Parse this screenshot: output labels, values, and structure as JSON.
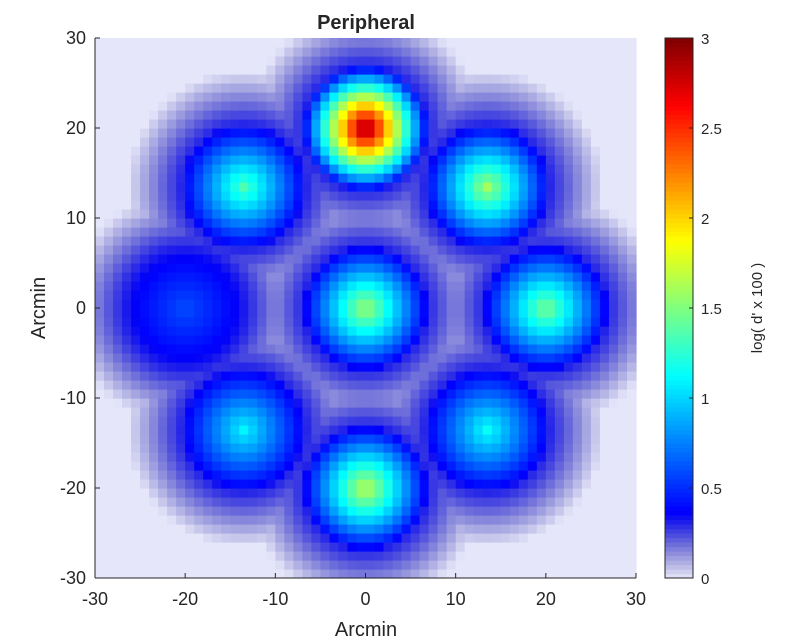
{
  "chart_data": {
    "type": "heatmap",
    "title": "Peripheral",
    "xlabel": "Arcmin",
    "ylabel": "Arcmin",
    "xlim": [
      -30,
      30
    ],
    "ylim": [
      -30,
      30
    ],
    "xticks": [
      -30,
      -20,
      -10,
      0,
      10,
      20,
      30
    ],
    "yticks": [
      -30,
      -20,
      -10,
      0,
      10,
      20,
      30
    ],
    "xtick_labels": [
      "-30",
      "-20",
      "-10",
      "0",
      "10",
      "20",
      "30"
    ],
    "ytick_labels": [
      "-30",
      "-20",
      "-10",
      "0",
      "10",
      "20",
      "30"
    ],
    "colorbar": {
      "label": "log( d' x 100 )",
      "range": [
        0,
        3
      ],
      "ticks": [
        0,
        0.5,
        1,
        1.5,
        2,
        2.5,
        3
      ],
      "tick_labels": [
        "0",
        "0.5",
        "1",
        "1.5",
        "2",
        "2.5",
        "3"
      ],
      "colormap": "jet"
    },
    "peaks": [
      {
        "x": 0,
        "y": 20,
        "value": 3.0
      },
      {
        "x": 13.5,
        "y": 13.5,
        "value": 1.6
      },
      {
        "x": -13.5,
        "y": 13.5,
        "value": 1.35
      },
      {
        "x": 0,
        "y": 0,
        "value": 1.6
      },
      {
        "x": 20,
        "y": 0,
        "value": 1.5
      },
      {
        "x": -20,
        "y": 0,
        "value": 0.6
      },
      {
        "x": -13.5,
        "y": -13.5,
        "value": 1.1
      },
      {
        "x": 13.5,
        "y": -13.5,
        "value": 1.15
      },
      {
        "x": 0,
        "y": -20,
        "value": 1.7
      }
    ],
    "grid": false
  }
}
